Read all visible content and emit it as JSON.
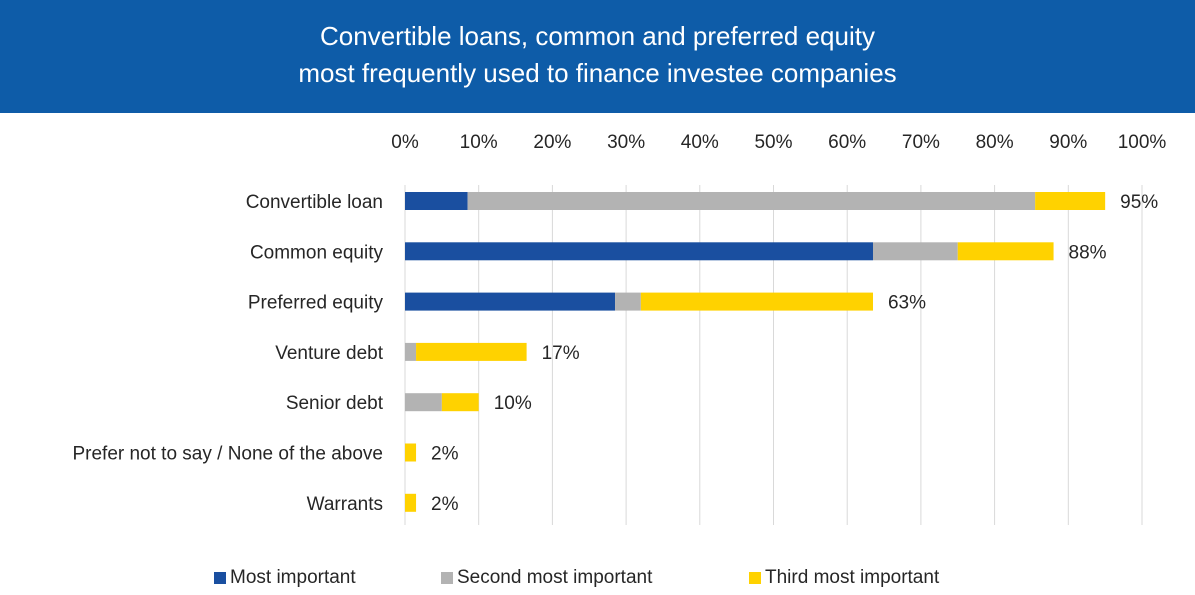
{
  "header": {
    "title_line1": "Convertible loans, common and preferred equity",
    "title_line2": "most frequently used to finance investee companies",
    "background_color": "#0e5ca8"
  },
  "chart_data": {
    "type": "bar",
    "orientation": "horizontal",
    "stacked": true,
    "categories": [
      "Convertible loan",
      "Common equity",
      "Preferred equity",
      "Venture debt",
      "Senior debt",
      "Prefer not to say / None of the above",
      "Warrants"
    ],
    "series": [
      {
        "name": "Most important",
        "color": "#1a4fa0",
        "values": [
          8.5,
          63.5,
          28.5,
          0,
          0,
          0,
          0
        ]
      },
      {
        "name": "Second most important",
        "color": "#b3b3b3",
        "values": [
          77,
          11.5,
          3.5,
          1.5,
          5,
          0,
          0
        ]
      },
      {
        "name": "Third most important",
        "color": "#ffd200",
        "values": [
          9.5,
          13,
          31.5,
          15,
          5,
          1.5,
          1.5
        ]
      }
    ],
    "totals_labels": [
      "95%",
      "88%",
      "63%",
      "17%",
      "10%",
      "2%",
      "2%"
    ],
    "xlim": [
      0,
      100
    ],
    "xticks": [
      "0%",
      "10%",
      "20%",
      "30%",
      "40%",
      "50%",
      "60%",
      "70%",
      "80%",
      "90%",
      "100%"
    ],
    "x_axis_position": "top",
    "grid": "vertical",
    "legend_position": "bottom"
  }
}
